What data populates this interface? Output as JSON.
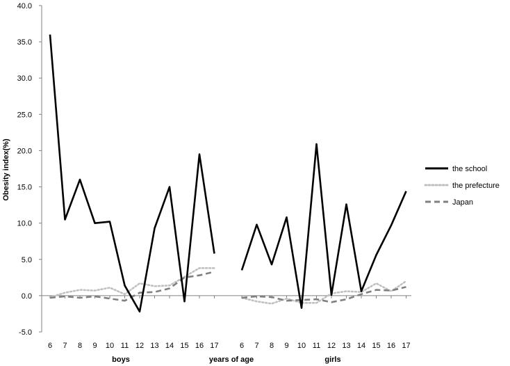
{
  "chart_data": {
    "type": "line",
    "ylabel": "Obesity index(%)",
    "ylim": [
      -5,
      40
    ],
    "yticks": [
      -5.0,
      0.0,
      5.0,
      10.0,
      15.0,
      20.0,
      25.0,
      30.0,
      35.0,
      40.0
    ],
    "ytick_labels": [
      "-5.0",
      "0.0",
      "5.0",
      "10.0",
      "15.0",
      "20.0",
      "25.0",
      "30.0",
      "35.0",
      "40.0"
    ],
    "grid": false,
    "legend_position": "right",
    "group_labels": [
      "boys",
      "years of age",
      "girls"
    ],
    "groups": [
      {
        "name": "boys",
        "ages": [
          "6",
          "7",
          "8",
          "9",
          "10",
          "11",
          "12",
          "13",
          "14",
          "15",
          "16",
          "17"
        ],
        "series": [
          {
            "name": "the school",
            "values": [
              36.0,
              10.5,
              16.0,
              10.0,
              10.2,
              1.4,
              -2.2,
              9.3,
              15.0,
              -0.8,
              19.5,
              5.8
            ]
          },
          {
            "name": "the prefecture",
            "values": [
              -0.2,
              0.4,
              0.8,
              0.7,
              1.1,
              0.2,
              1.7,
              1.3,
              1.4,
              2.6,
              3.8,
              3.8
            ]
          },
          {
            "name": "Japan",
            "values": [
              -0.3,
              -0.1,
              -0.3,
              -0.1,
              -0.4,
              -0.7,
              0.4,
              0.5,
              1.0,
              2.5,
              2.8,
              3.3
            ]
          }
        ]
      },
      {
        "name": "girls",
        "ages": [
          "6",
          "7",
          "8",
          "9",
          "10",
          "11",
          "12",
          "13",
          "14",
          "15",
          "16",
          "17"
        ],
        "series": [
          {
            "name": "the school",
            "values": [
              3.5,
              9.8,
              4.3,
              10.8,
              -1.7,
              20.9,
              0.1,
              12.6,
              0.6,
              5.6,
              9.7,
              14.4
            ]
          },
          {
            "name": "the prefecture",
            "values": [
              -0.3,
              -0.8,
              -1.1,
              -0.4,
              -1.0,
              -1.0,
              0.3,
              0.6,
              0.5,
              1.7,
              0.6,
              2.0
            ]
          },
          {
            "name": "Japan",
            "values": [
              -0.3,
              -0.1,
              -0.2,
              -0.7,
              -0.6,
              -0.5,
              -0.9,
              -0.5,
              0.2,
              0.8,
              0.7,
              1.2
            ]
          }
        ]
      }
    ],
    "legend": [
      {
        "name": "the school",
        "color": "#000000",
        "style": "solid"
      },
      {
        "name": "the prefecture",
        "color": "#c0c0c0",
        "style": "dotted"
      },
      {
        "name": "Japan",
        "color": "#808080",
        "style": "dashed"
      }
    ]
  }
}
